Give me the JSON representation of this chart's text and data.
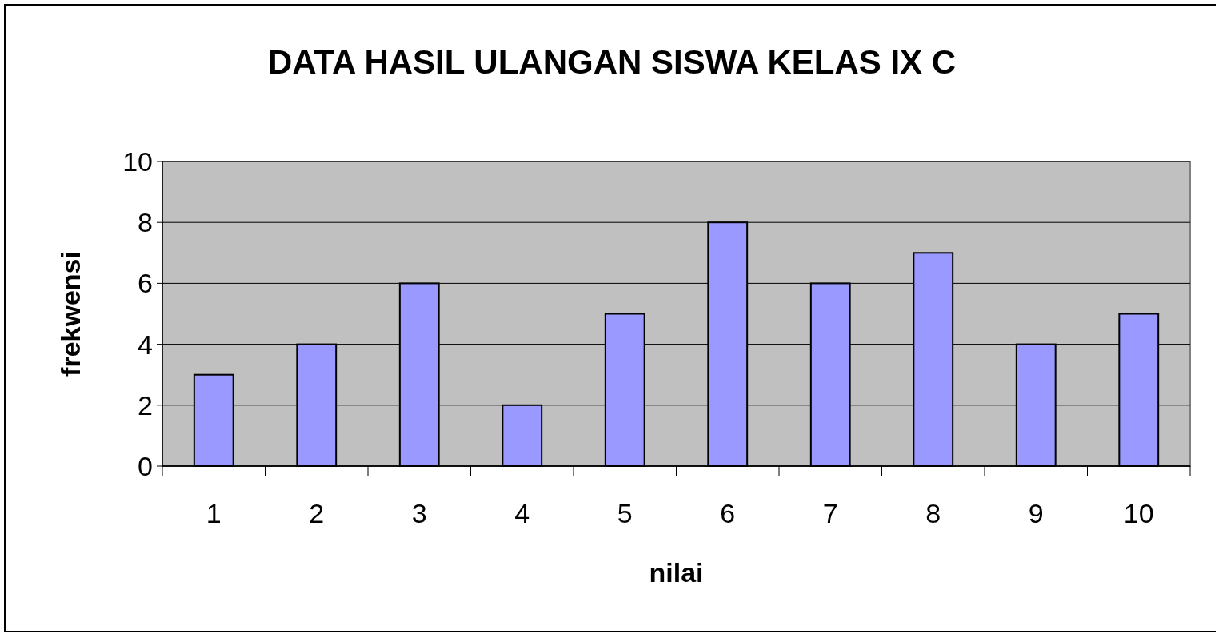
{
  "chart_data": {
    "type": "bar",
    "title": "DATA HASIL ULANGAN SISWA KELAS IX C",
    "xlabel": "nilai",
    "ylabel": "frekwensi",
    "categories": [
      "1",
      "2",
      "3",
      "4",
      "5",
      "6",
      "7",
      "8",
      "9",
      "10"
    ],
    "values": [
      3,
      4,
      6,
      2,
      5,
      8,
      6,
      7,
      4,
      5
    ],
    "color": "#9999ff",
    "ylim": [
      0,
      10
    ],
    "yticks": [
      0,
      2,
      4,
      6,
      8,
      10
    ],
    "grid": "y"
  }
}
